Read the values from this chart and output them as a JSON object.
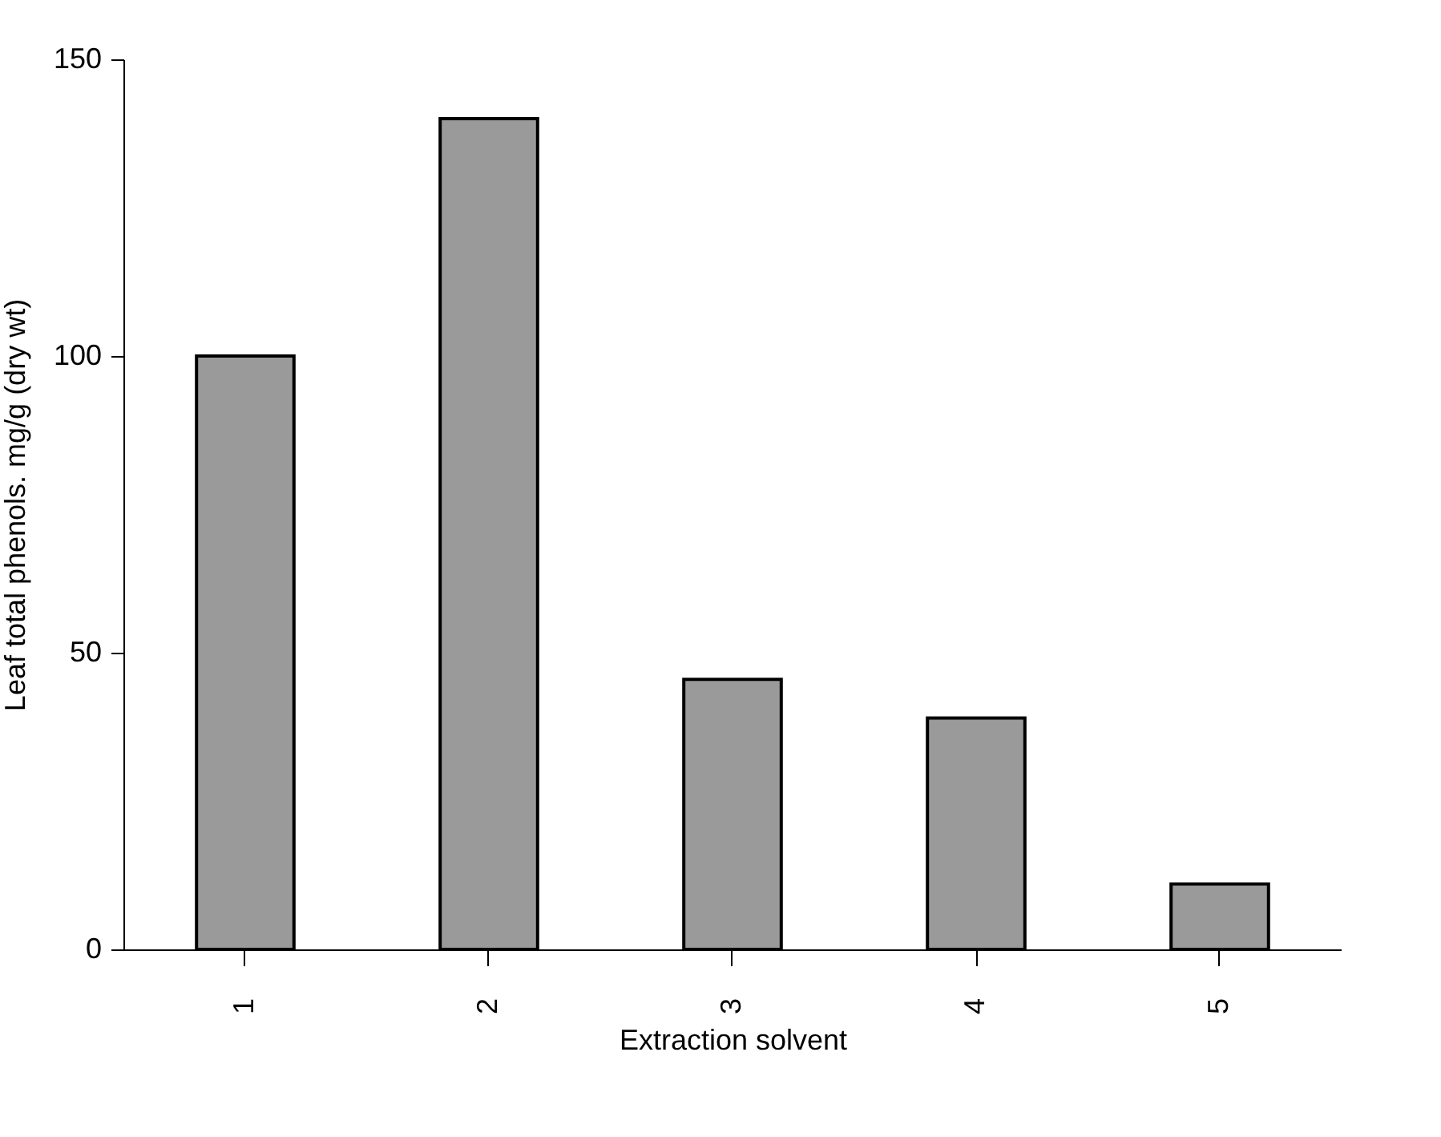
{
  "chart_data": {
    "type": "bar",
    "xlabel": "Extraction solvent",
    "ylabel": "Leaf total phenols. mg/g (dry wt)",
    "categories": [
      "1",
      "2",
      "3",
      "4",
      "5"
    ],
    "values": [
      100,
      140,
      45.5,
      39,
      11
    ],
    "color": "#9a9a9a",
    "ylim": [
      0,
      150
    ],
    "yticks": [
      0,
      50,
      100,
      150
    ],
    "grid": false
  }
}
